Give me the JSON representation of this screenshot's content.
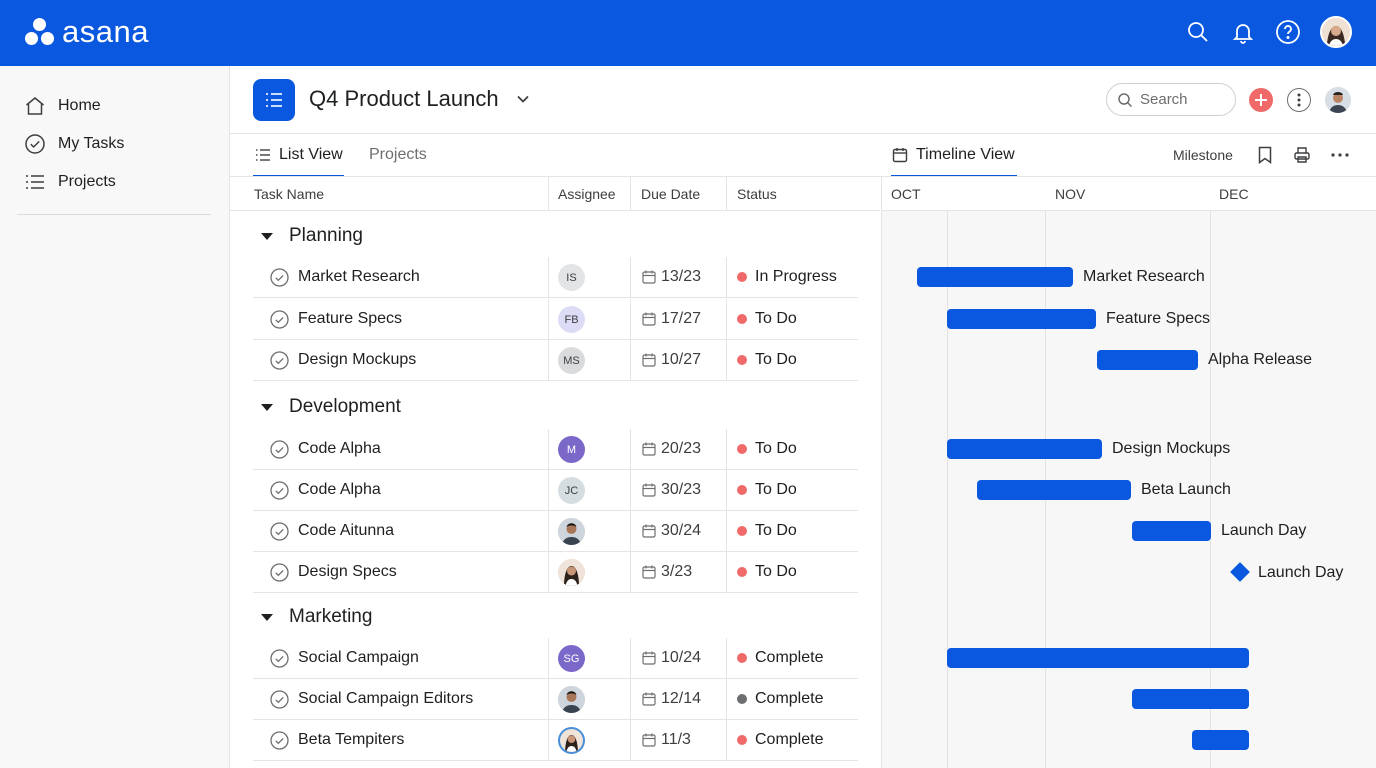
{
  "app": {
    "brand": "asana",
    "accent_color": "#0b58e0"
  },
  "topbar_icons": [
    "search-icon",
    "bell-icon",
    "help-icon",
    "user-avatar"
  ],
  "sidebar": {
    "items": [
      {
        "label": "Home",
        "icon": "home-icon"
      },
      {
        "label": "My Tasks",
        "icon": "check-circle-icon"
      },
      {
        "label": "Projects",
        "icon": "list-icon"
      }
    ]
  },
  "header": {
    "title": "Q4 Product Launch",
    "search_placeholder": "Search"
  },
  "tabs": {
    "list_view": "List View",
    "projects": "Projects",
    "timeline_view": "Timeline View",
    "milestone": "Milestone"
  },
  "columns": {
    "task_name": "Task Name",
    "assignee": "Assignee",
    "due_date": "Due Date",
    "status": "Status"
  },
  "groups": [
    {
      "name": "Planning",
      "tasks": [
        {
          "name": "Market Research",
          "assignee": "IS",
          "assignee_color": "#e3e4e6",
          "due": "13/23",
          "status": "In Progress",
          "status_color": "#f06a6a"
        },
        {
          "name": "Feature Specs",
          "assignee": "FB",
          "assignee_color": "#dcdcf7",
          "due": "17/27",
          "status": "To Do",
          "status_color": "#f06a6a"
        },
        {
          "name": "Design Mockups",
          "assignee": "MS",
          "assignee_color": "#dadbdd",
          "due": "10/27",
          "status": "To Do",
          "status_color": "#f06a6a"
        }
      ]
    },
    {
      "name": "Development",
      "tasks": [
        {
          "name": "Code Alpha",
          "assignee": "M",
          "assignee_color": "#7b68c8",
          "due": "20/23",
          "status": "To Do",
          "status_color": "#f06a6a"
        },
        {
          "name": "Code Alpha",
          "assignee": "JC",
          "assignee_color": "#d6dde0",
          "due": "30/23",
          "status": "To Do",
          "status_color": "#f06a6a"
        },
        {
          "name": "Code Aitunna",
          "assignee": "",
          "assignee_color": "#c9cdd2",
          "due": "30/24",
          "status": "To Do",
          "status_color": "#f06a6a"
        },
        {
          "name": "Design Specs",
          "assignee": "",
          "assignee_color": "#e8d5c8",
          "due": "3/23",
          "status": "To Do",
          "status_color": "#f06a6a"
        }
      ]
    },
    {
      "name": "Marketing",
      "tasks": [
        {
          "name": "Social Campaign",
          "assignee": "SG",
          "assignee_color": "#7b68c8",
          "due": "10/24",
          "status": "Complete",
          "status_color": "#f06a6a"
        },
        {
          "name": "Social Campaign Editors",
          "assignee": "",
          "assignee_color": "#c9cdd2",
          "due": "12/14",
          "status": "Complete",
          "status_color": "#6d6e6f"
        },
        {
          "name": "Beta Tempiters",
          "assignee": "",
          "assignee_color": "#4a90d9",
          "due": "11/3",
          "status": "Complete",
          "status_color": "#f06a6a"
        }
      ]
    }
  ],
  "timeline": {
    "months": [
      "OCT",
      "NOV",
      "DEC"
    ],
    "bar_labels": [
      "Market Research",
      "Feature Specs",
      "Alpha Release",
      "Design Mockups",
      "Beta Launch",
      "Launch Day",
      "Launch Day"
    ]
  }
}
